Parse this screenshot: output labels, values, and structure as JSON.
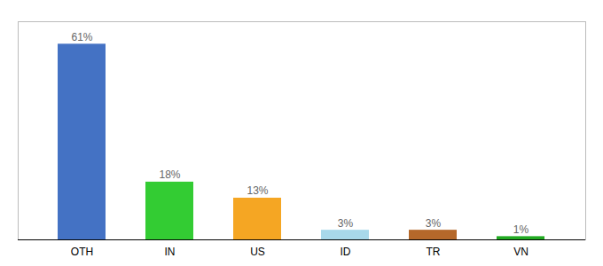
{
  "chart_data": {
    "type": "bar",
    "categories": [
      "OTH",
      "IN",
      "US",
      "ID",
      "TR",
      "VN"
    ],
    "values": [
      61,
      18,
      13,
      3,
      3,
      1
    ],
    "value_labels": [
      "61%",
      "18%",
      "13%",
      "3%",
      "3%",
      "1%"
    ],
    "colors": [
      "#4472c4",
      "#33cc33",
      "#f5a623",
      "#a8d8ea",
      "#b5682a",
      "#22aa22"
    ],
    "ylim": [
      0,
      68
    ],
    "data_labels": true,
    "tick_labels": "x"
  }
}
